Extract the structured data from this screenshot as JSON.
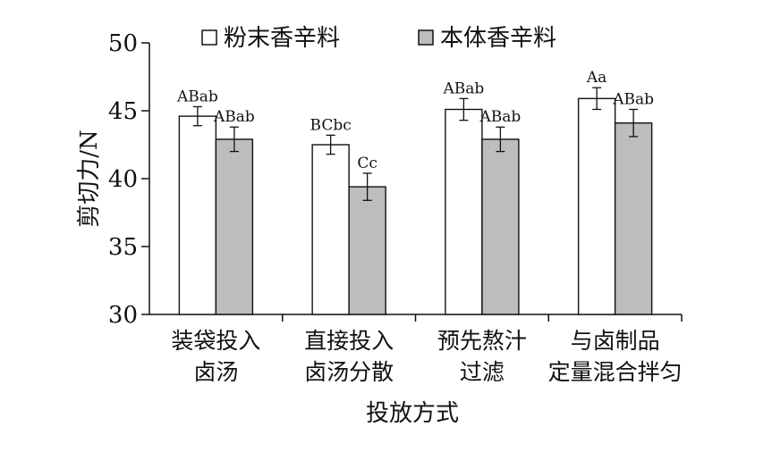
{
  "chart_data": {
    "type": "bar",
    "xlabel": "投放方式",
    "ylabel": "剪切力/N",
    "ylim": [
      30,
      50
    ],
    "yticks": [
      30,
      35,
      40,
      45,
      50
    ],
    "legend_position": "top",
    "categories": [
      [
        "装袋投入",
        "卤汤"
      ],
      [
        "直接投入",
        "卤汤分散"
      ],
      [
        "预先熬汁",
        "过滤"
      ],
      [
        "与卤制品",
        "定量混合拌匀"
      ]
    ],
    "series": [
      {
        "name": "粉末香辛料",
        "color": "#ffffff",
        "values": [
          44.6,
          42.5,
          45.1,
          45.9
        ],
        "errors": [
          0.7,
          0.7,
          0.8,
          0.8
        ],
        "labels": [
          "ABab",
          "BCbc",
          "ABab",
          "Aa"
        ]
      },
      {
        "name": "本体香辛料",
        "color": "#bdbdbd",
        "values": [
          42.9,
          39.4,
          42.9,
          44.1
        ],
        "errors": [
          0.9,
          1.0,
          0.9,
          1.0
        ],
        "labels": [
          "ABab",
          "Cc",
          "ABab",
          "ABab"
        ]
      }
    ]
  }
}
